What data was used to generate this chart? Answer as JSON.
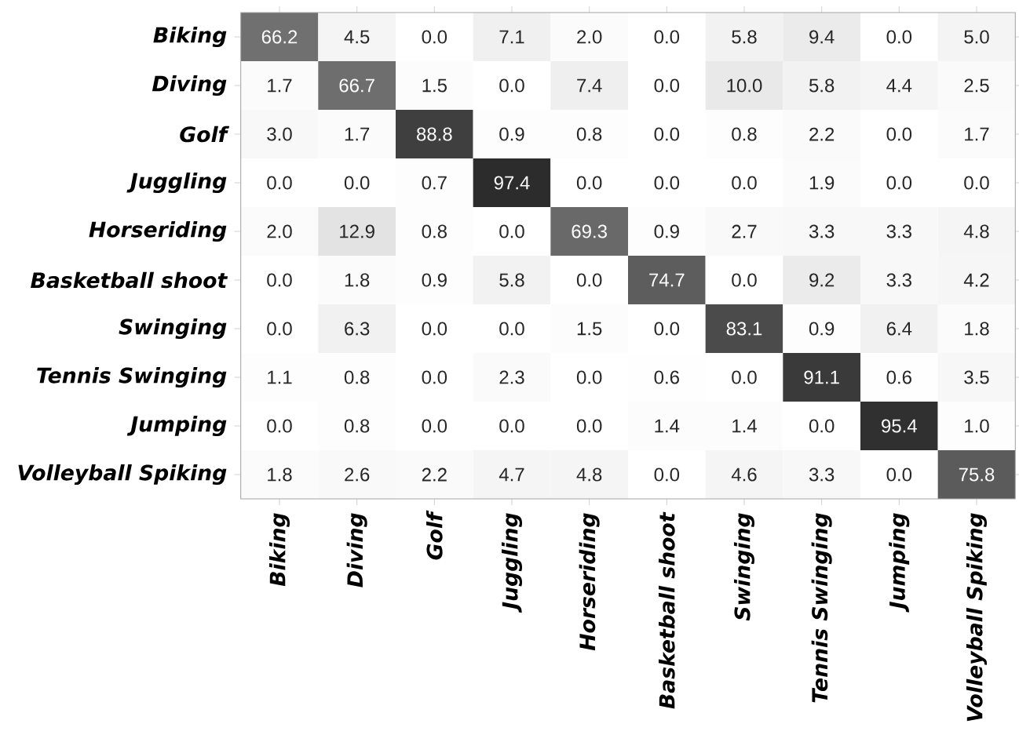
{
  "chart_data": {
    "type": "heatmap",
    "categories": [
      "Biking",
      "Diving",
      "Golf",
      "Juggling",
      "Horseriding",
      "Basketball shoot",
      "Swinging",
      "Tennis Swinging",
      "Jumping",
      "Volleyball Spiking"
    ],
    "y_categories": [
      "Biking",
      "Diving",
      "Golf",
      "Juggling",
      "Horseriding",
      "Basketball shoot",
      "Swinging",
      "Tennis Swinging",
      "Jumping",
      "Volleyball Spiking"
    ],
    "cells": [
      [
        66.2,
        4.5,
        0.0,
        7.1,
        2.0,
        0.0,
        5.8,
        9.4,
        0.0,
        5.0
      ],
      [
        1.7,
        66.7,
        1.5,
        0.0,
        7.4,
        0.0,
        10.0,
        5.8,
        4.4,
        2.5
      ],
      [
        3.0,
        1.7,
        88.8,
        0.9,
        0.8,
        0.0,
        0.8,
        2.2,
        0.0,
        1.7
      ],
      [
        0.0,
        0.0,
        0.7,
        97.4,
        0.0,
        0.0,
        0.0,
        1.9,
        0.0,
        0.0
      ],
      [
        2.0,
        12.9,
        0.8,
        0.0,
        69.3,
        0.9,
        2.7,
        3.3,
        3.3,
        4.8
      ],
      [
        0.0,
        1.8,
        0.9,
        5.8,
        0.0,
        74.7,
        0.0,
        9.2,
        3.3,
        4.2
      ],
      [
        0.0,
        6.3,
        0.0,
        0.0,
        1.5,
        0.0,
        83.1,
        0.9,
        6.4,
        1.8
      ],
      [
        1.1,
        0.8,
        0.0,
        2.3,
        0.0,
        0.6,
        0.0,
        91.1,
        0.6,
        3.5
      ],
      [
        0.0,
        0.8,
        0.0,
        0.0,
        0.0,
        1.4,
        1.4,
        0.0,
        95.4,
        1.0
      ],
      [
        1.8,
        2.6,
        2.2,
        4.7,
        4.8,
        0.0,
        4.6,
        3.3,
        0.0,
        75.8
      ]
    ],
    "cell_labels": [
      [
        "66.2",
        "4.5",
        "0.0",
        "7.1",
        "2.0",
        "0.0",
        "5.8",
        "9.4",
        "0.0",
        "5.0"
      ],
      [
        "1.7",
        "66.7",
        "1.5",
        "0.0",
        "7.4",
        "0.0",
        "10.0",
        "5.8",
        "4.4",
        "2.5"
      ],
      [
        "3.0",
        "1.7",
        "88.8",
        "0.9",
        "0.8",
        "0.0",
        "0.8",
        "2.2",
        "0.0",
        "1.7"
      ],
      [
        "0.0",
        "0.0",
        "0.7",
        "97.4",
        "0.0",
        "0.0",
        "0.0",
        "1.9",
        "0.0",
        "0.0"
      ],
      [
        "2.0",
        "12.9",
        "0.8",
        "0.0",
        "69.3",
        "0.9",
        "2.7",
        "3.3",
        "3.3",
        "4.8"
      ],
      [
        "0.0",
        "1.8",
        "0.9",
        "5.8",
        "0.0",
        "74.7",
        "0.0",
        "9.2",
        "3.3",
        "4.2"
      ],
      [
        "0.0",
        "6.3",
        "0.0",
        "0.0",
        "1.5",
        "0.0",
        "83.1",
        "0.9",
        "6.4",
        "1.8"
      ],
      [
        "1.1",
        "0.8",
        "0.0",
        "2.3",
        "0.0",
        "0.6",
        "0.0",
        "91.1",
        "0.6",
        "3.5"
      ],
      [
        "0.0",
        "0.8",
        "0.0",
        "0.0",
        "0.0",
        "1.4",
        "1.4",
        "0.0",
        "95.4",
        "1.0"
      ],
      [
        "1.8",
        "2.6",
        "2.2",
        "4.7",
        "4.8",
        "0.0",
        "4.6",
        "3.3",
        "0.0",
        "75.8"
      ]
    ]
  }
}
